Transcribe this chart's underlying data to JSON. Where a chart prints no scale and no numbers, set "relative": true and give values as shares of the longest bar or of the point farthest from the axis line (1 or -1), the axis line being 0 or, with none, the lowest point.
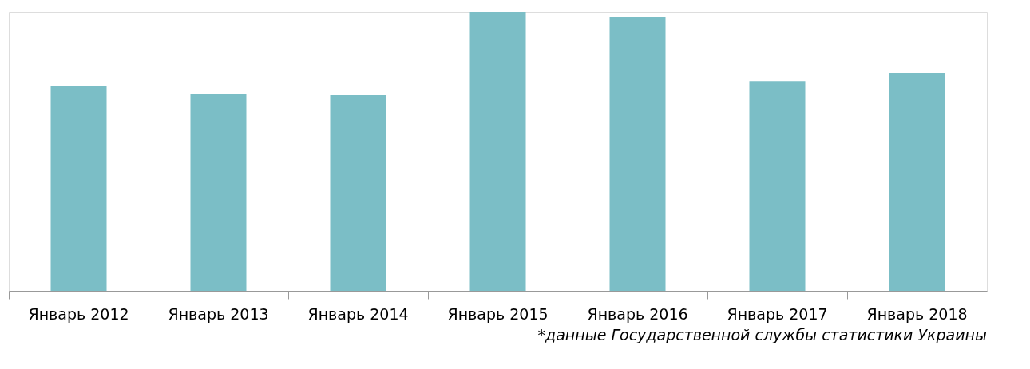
{
  "chart_data": {
    "type": "bar",
    "relative": true,
    "categories": [
      "Январь 2012",
      "Январь 2013",
      "Январь 2014",
      "Январь 2015",
      "Январь 2016",
      "Январь 2017",
      "Январь 2018"
    ],
    "values": [
      0.734,
      0.706,
      0.703,
      1,
      0.983,
      0.751,
      0.78
    ],
    "color": "#7bbec6",
    "annotations": [
      "*данные Государственной службы статистики Украины"
    ]
  }
}
